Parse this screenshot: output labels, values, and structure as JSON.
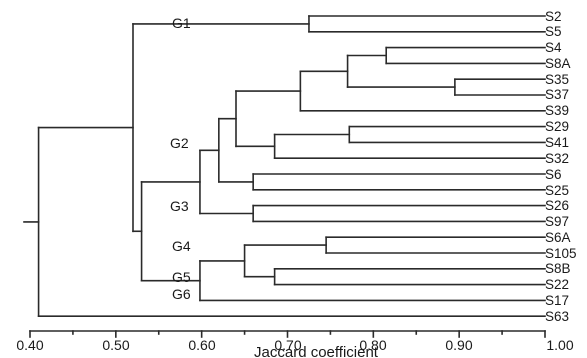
{
  "axis": {
    "title": "Jaccard coefficient",
    "min": 0.4,
    "max": 1.0,
    "major_ticks": [
      "0.40",
      "0.50",
      "0.60",
      "0.70",
      "0.80",
      "0.90",
      "1.00"
    ]
  },
  "leaves": [
    "S2",
    "S5",
    "S4",
    "S8A",
    "S35",
    "S37",
    "S39",
    "S29",
    "S41",
    "S32",
    "S6",
    "S25",
    "S26",
    "S97",
    "S6A",
    "S105",
    "S8B",
    "S22",
    "S17",
    "S63"
  ],
  "groups": [
    {
      "label": "G1",
      "leaves": [
        "S2",
        "S5"
      ]
    },
    {
      "label": "G2",
      "leaves": [
        "S4",
        "S8A",
        "S35",
        "S37",
        "S39",
        "S29",
        "S41",
        "S32",
        "S6",
        "S25"
      ]
    },
    {
      "label": "G3",
      "leaves": [
        "S26",
        "S97"
      ]
    },
    {
      "label": "G4",
      "leaves": [
        "S6A",
        "S105",
        "S8B",
        "S22"
      ]
    },
    {
      "label": "G5",
      "leaves": [
        "S17"
      ]
    },
    {
      "label": "G6",
      "leaves": [
        "S63"
      ]
    }
  ],
  "merges": [
    {
      "a": "S2",
      "b": "S5",
      "sim": 0.725
    },
    {
      "a": "S4",
      "b": "S8A",
      "sim": 0.815
    },
    {
      "a": "S35",
      "b": "S37",
      "sim": 0.895
    },
    {
      "a": "S4+S8A",
      "b": "S35+S37",
      "sim": 0.77
    },
    {
      "a": "S4..S37",
      "b": "S39",
      "sim": 0.715
    },
    {
      "a": "S29",
      "b": "S41",
      "sim": 0.772
    },
    {
      "a": "S29+S41",
      "b": "S32",
      "sim": 0.685
    },
    {
      "a": "S4..S39",
      "b": "S29..S32",
      "sim": 0.64
    },
    {
      "a": "S6",
      "b": "S25",
      "sim": 0.66
    },
    {
      "a": "S4..S32",
      "b": "S6+S25",
      "sim": 0.62
    },
    {
      "a": "S26",
      "b": "S97",
      "sim": 0.66
    },
    {
      "a": "S4..S25",
      "b": "S26+S97",
      "sim": 0.598
    },
    {
      "a": "S6A",
      "b": "S105",
      "sim": 0.745
    },
    {
      "a": "S8B",
      "b": "S22",
      "sim": 0.685
    },
    {
      "a": "S6A+S105",
      "b": "S8B+S22",
      "sim": 0.65
    },
    {
      "a": "S6A..S22",
      "b": "S17",
      "sim": 0.598
    },
    {
      "a": "S4..S97",
      "b": "S6A..S17",
      "sim": 0.53
    },
    {
      "a": "S2+S5",
      "b": "S4..S17",
      "sim": 0.52
    },
    {
      "a": "S2..S17",
      "b": "S63",
      "sim": 0.41
    }
  ]
}
